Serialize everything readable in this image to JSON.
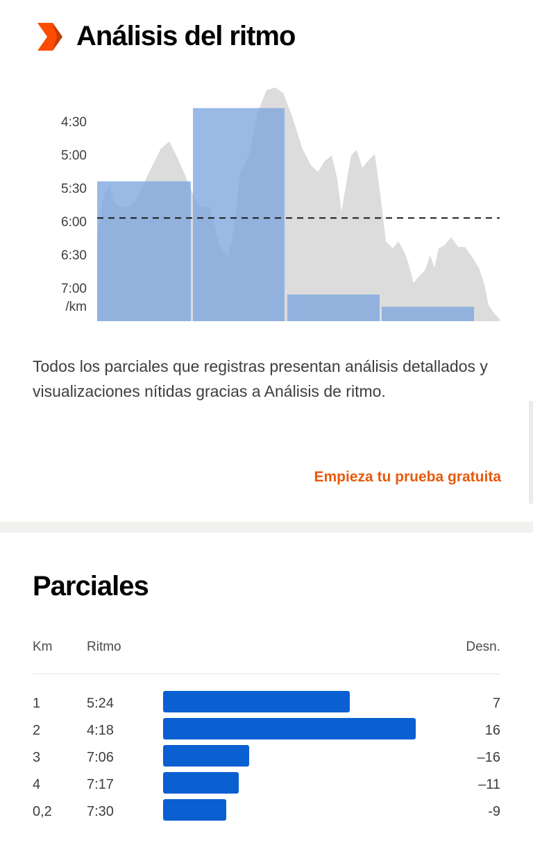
{
  "pace_analysis": {
    "title": "Análisis del ritmo",
    "icon": "orange-chevron-logo-icon",
    "accent_color": "#fc4c02",
    "description": "Todos los parciales que registras presentan análisis detallados y visualizaciones nítidas gracias a Análisis de ritmo.",
    "cta_label": "Empieza tu prueba gratuita",
    "cta_color": "#e8590c"
  },
  "chart_data": {
    "type": "area",
    "y_tick_labels": [
      "4:30",
      "5:00",
      "5:30",
      "6:00",
      "6:30",
      "7:00"
    ],
    "y_unit_label": "/km",
    "average_pace": "5:57",
    "elevation_color": "#dcdcdc",
    "split_bar_color": "#7ea6de",
    "split_bars": [
      {
        "km": "1",
        "pace": "5:24"
      },
      {
        "km": "2",
        "pace": "4:18"
      },
      {
        "km": "3",
        "pace": "7:06"
      },
      {
        "km": "4",
        "pace": "7:17"
      },
      {
        "km": "0,2",
        "pace": "7:30"
      }
    ],
    "grid": false
  },
  "splits": {
    "title": "Parciales",
    "headers": {
      "km": "Km",
      "pace": "Ritmo",
      "elev": "Desn."
    },
    "bar_color": "#0a5fd1",
    "rows": [
      {
        "km": "1",
        "pace": "5:24",
        "elev": "7",
        "bar_fraction": 0.74
      },
      {
        "km": "2",
        "pace": "4:18",
        "elev": "16",
        "bar_fraction": 1.0
      },
      {
        "km": "3",
        "pace": "7:06",
        "elev": "–16",
        "bar_fraction": 0.34
      },
      {
        "km": "4",
        "pace": "7:17",
        "elev": "–11",
        "bar_fraction": 0.3
      },
      {
        "km": "0,2",
        "pace": "7:30",
        "elev": "-9",
        "bar_fraction": 0.25
      }
    ]
  }
}
